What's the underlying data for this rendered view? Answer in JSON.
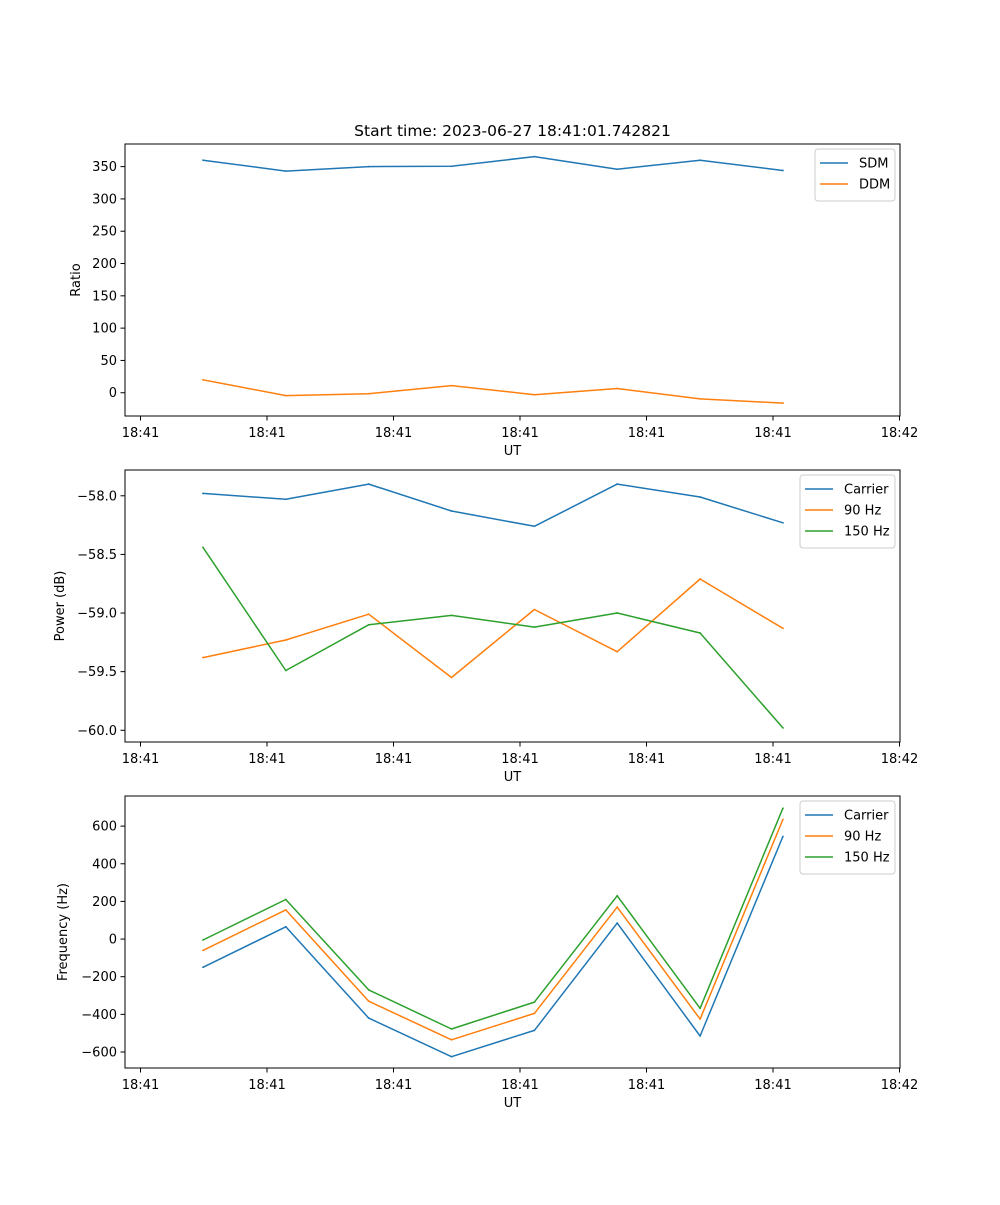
{
  "chart_data": [
    {
      "type": "line",
      "title": "Start time: 2023-06-27 18:41:01.742821",
      "xlabel": "UT",
      "ylabel": "Ratio",
      "xticks": [
        "18:41",
        "18:41",
        "18:41",
        "18:41",
        "18:41",
        "18:41",
        "18:42"
      ],
      "x_range_seconds": [
        0,
        12
      ],
      "x_seconds": [
        1.25,
        2.9,
        4.55,
        6.2,
        7.85,
        9.5,
        11.15,
        12.8
      ],
      "ylim": [
        -36,
        385
      ],
      "yticks": [
        0,
        50,
        100,
        150,
        200,
        250,
        300,
        350
      ],
      "legend": "top-right",
      "series": [
        {
          "name": "SDM",
          "color": "#1f77b4",
          "values": [
            360,
            343,
            350,
            350.5,
            365.5,
            346,
            360,
            344
          ]
        },
        {
          "name": "DDM",
          "color": "#ff7f0e",
          "values": [
            20,
            -4.5,
            -1.5,
            11,
            -3,
            6.5,
            -9.5,
            -16
          ]
        }
      ]
    },
    {
      "type": "line",
      "title": "",
      "xlabel": "UT",
      "ylabel": "Power (dB)",
      "xticks": [
        "18:41",
        "18:41",
        "18:41",
        "18:41",
        "18:41",
        "18:41",
        "18:42"
      ],
      "x_range_seconds": [
        0,
        12
      ],
      "x_seconds": [
        1.25,
        2.9,
        4.55,
        6.2,
        7.85,
        9.5,
        11.15,
        12.8
      ],
      "ylim": [
        -60.1,
        -57.78
      ],
      "yticks": [
        -60.0,
        -59.5,
        -59.0,
        -58.5,
        -58.0
      ],
      "legend": "top-right",
      "series": [
        {
          "name": "Carrier",
          "color": "#1f77b4",
          "values": [
            -57.98,
            -58.03,
            -57.9,
            -58.13,
            -58.26,
            -57.9,
            -58.01,
            -58.23
          ]
        },
        {
          "name": "90 Hz",
          "color": "#ff7f0e",
          "values": [
            -59.38,
            -59.23,
            -59.01,
            -59.55,
            -58.97,
            -59.33,
            -58.71,
            -59.13
          ]
        },
        {
          "name": "150 Hz",
          "color": "#2ca02c",
          "values": [
            -58.44,
            -59.49,
            -59.1,
            -59.02,
            -59.12,
            -59.0,
            -59.17,
            -59.98
          ]
        }
      ]
    },
    {
      "type": "line",
      "title": "",
      "xlabel": "UT",
      "ylabel": "Frequency (Hz)",
      "xticks": [
        "18:41",
        "18:41",
        "18:41",
        "18:41",
        "18:41",
        "18:41",
        "18:42"
      ],
      "x_range_seconds": [
        0,
        12
      ],
      "x_seconds": [
        1.25,
        2.9,
        4.55,
        6.2,
        7.85,
        9.5,
        11.15,
        12.8
      ],
      "ylim": [
        -685,
        760
      ],
      "yticks": [
        -600,
        -400,
        -200,
        0,
        200,
        400,
        600
      ],
      "legend": "top-right",
      "series": [
        {
          "name": "Carrier",
          "color": "#1f77b4",
          "values": [
            -150,
            65,
            -420,
            -625,
            -485,
            85,
            -515,
            545
          ]
        },
        {
          "name": "90 Hz",
          "color": "#ff7f0e",
          "values": [
            -60,
            155,
            -330,
            -535,
            -395,
            170,
            -425,
            635
          ]
        },
        {
          "name": "150 Hz",
          "color": "#2ca02c",
          "values": [
            -5,
            210,
            -270,
            -478,
            -335,
            230,
            -368,
            695
          ]
        }
      ]
    }
  ]
}
